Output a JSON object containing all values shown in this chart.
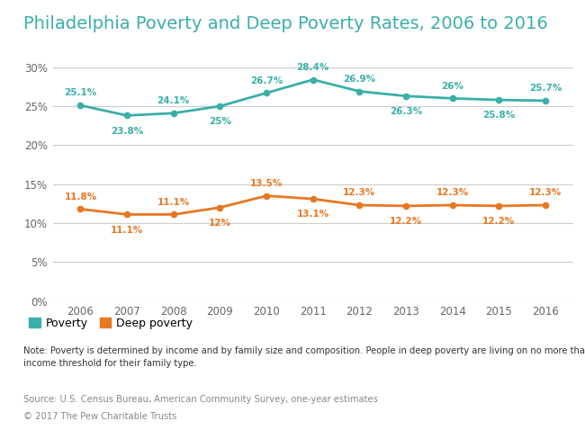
{
  "title": "Philadelphia Poverty and Deep Poverty Rates, 2006 to 2016",
  "years": [
    2006,
    2007,
    2008,
    2009,
    2010,
    2011,
    2012,
    2013,
    2014,
    2015,
    2016
  ],
  "poverty": [
    25.1,
    23.8,
    24.1,
    25.0,
    26.7,
    28.4,
    26.9,
    26.3,
    26.0,
    25.8,
    25.7
  ],
  "deep_poverty": [
    11.8,
    11.1,
    11.1,
    12.0,
    13.5,
    13.1,
    12.3,
    12.2,
    12.3,
    12.2,
    12.3
  ],
  "poverty_labels": [
    "25.1%",
    "23.8%",
    "24.1%",
    "25%",
    "26.7%",
    "28.4%",
    "26.9%",
    "26.3%",
    "26%",
    "25.8%",
    "25.7%"
  ],
  "deep_poverty_labels": [
    "11.8%",
    "11.1%",
    "11.1%",
    "12%",
    "13.5%",
    "13.1%",
    "12.3%",
    "12.2%",
    "12.3%",
    "12.2%",
    "12.3%"
  ],
  "poverty_color": "#3AAFA9",
  "deep_poverty_color": "#E87722",
  "ylim": [
    0,
    32
  ],
  "yticks": [
    0,
    5,
    10,
    15,
    20,
    25,
    30
  ],
  "ytick_labels": [
    "0%",
    "5%",
    "10%",
    "15%",
    "20%",
    "25%",
    "30%"
  ],
  "bg_color": "#ffffff",
  "legend_poverty": "Poverty",
  "legend_deep": "Deep poverty",
  "note_text": "Note: Poverty is determined by income and by family size and composition. People in deep poverty are living on no more than half the poverty\nincome threshold for their family type.",
  "source": "Source: U.S. Census Bureau, American Community Survey, one-year estimates",
  "copyright": "© 2017 The Pew Charitable Trusts",
  "title_color": "#3AAFA9",
  "grid_color": "#cccccc",
  "note_color": "#555555",
  "poverty_label_yoff": [
    1.0,
    -1.4,
    1.0,
    -1.4,
    1.0,
    1.0,
    1.0,
    -1.4,
    1.0,
    -1.4,
    1.0
  ],
  "deep_label_yoff": [
    1.0,
    -1.4,
    1.0,
    -1.4,
    1.0,
    -1.4,
    1.0,
    -1.4,
    1.0,
    -1.4,
    1.0
  ]
}
